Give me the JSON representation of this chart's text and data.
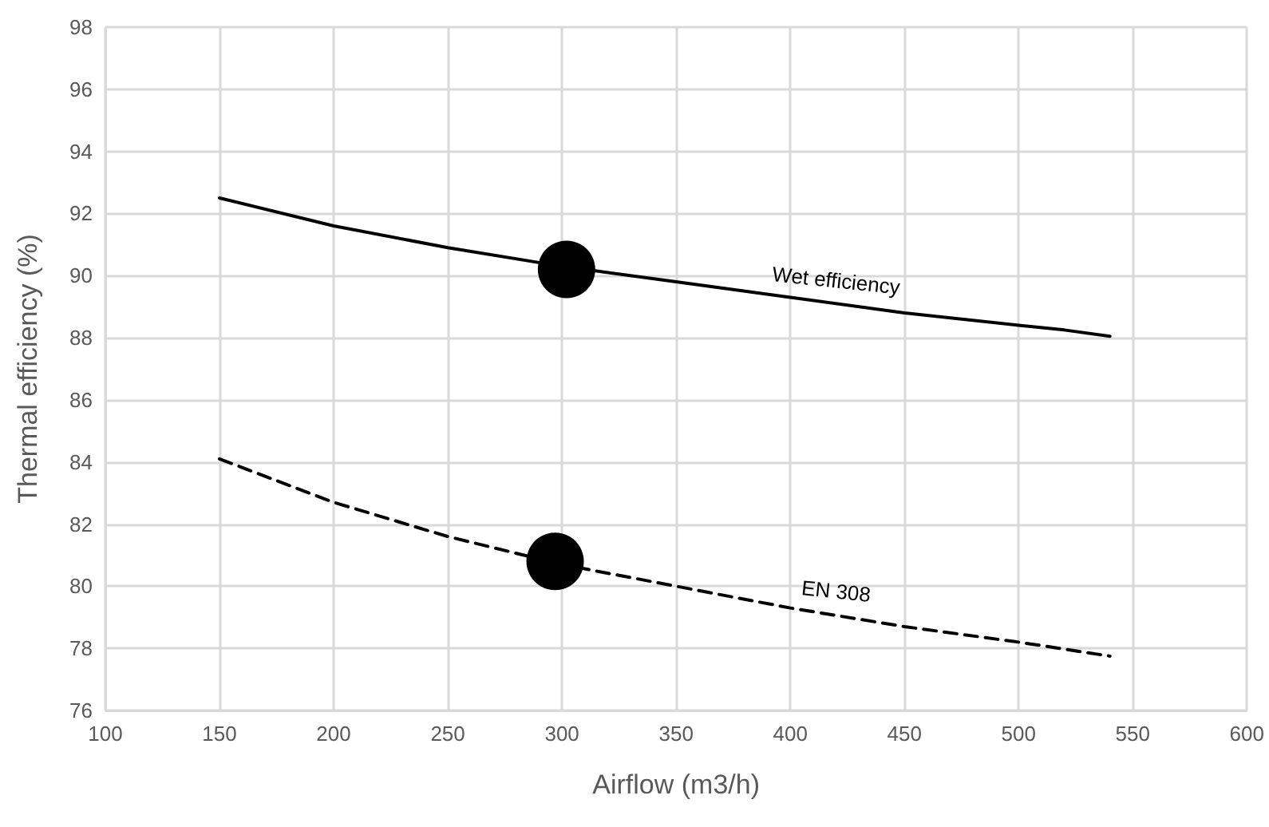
{
  "chart_data": {
    "type": "line",
    "xlabel": "Airflow (m3/h)",
    "ylabel": "Thermal efficiency (%)",
    "xlim": [
      100,
      600
    ],
    "xticks": [
      100,
      150,
      200,
      250,
      300,
      350,
      400,
      450,
      500,
      550,
      600
    ],
    "ylim": [
      76,
      98
    ],
    "yticks": [
      76,
      78,
      80,
      82,
      84,
      86,
      88,
      90,
      92,
      94,
      96,
      98
    ],
    "grid": true,
    "legend": false,
    "marker": "none",
    "series": [
      {
        "name": "Wet efficiency",
        "color": "#000000",
        "line_style": "solid",
        "x": [
          150,
          200,
          250,
          300,
          350,
          400,
          450,
          500,
          520,
          540
        ],
        "values": [
          92.5,
          91.6,
          90.9,
          90.3,
          89.8,
          89.3,
          88.8,
          88.4,
          88.25,
          88.05
        ]
      },
      {
        "name": "EN 308",
        "color": "#000000",
        "line_style": "dashed",
        "x": [
          150,
          200,
          250,
          300,
          350,
          400,
          450,
          500,
          540
        ],
        "values": [
          84.1,
          82.7,
          81.6,
          80.7,
          80.0,
          79.3,
          78.7,
          78.2,
          77.75
        ]
      },
      {
        "type": "scatter",
        "color": "#000000",
        "marker": "circle",
        "x": [
          302,
          297
        ],
        "values": [
          90.2,
          80.8
        ]
      }
    ]
  }
}
